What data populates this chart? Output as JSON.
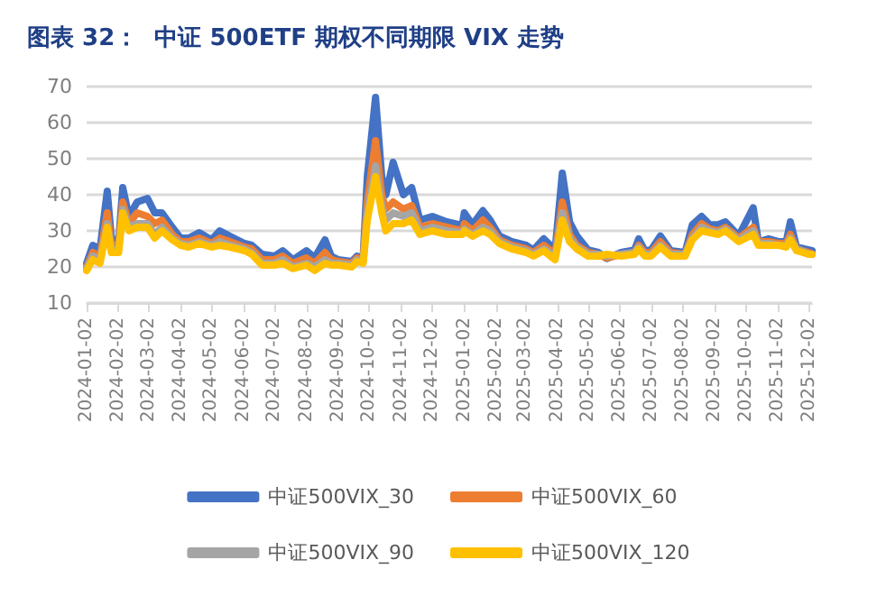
{
  "chart_data": {
    "type": "line",
    "title": "图表 32：  中证 500ETF 期权不同期限 VIX 走势",
    "x": [
      "2024-01-02",
      "2024-01-08",
      "2024-01-15",
      "2024-01-22",
      "2024-01-26",
      "2024-02-02",
      "2024-02-06",
      "2024-02-12",
      "2024-02-20",
      "2024-03-01",
      "2024-03-08",
      "2024-03-15",
      "2024-03-25",
      "2024-04-02",
      "2024-04-10",
      "2024-04-20",
      "2024-05-02",
      "2024-05-10",
      "2024-05-20",
      "2024-06-03",
      "2024-06-10",
      "2024-06-20",
      "2024-07-02",
      "2024-07-10",
      "2024-07-20",
      "2024-08-02",
      "2024-08-10",
      "2024-08-20",
      "2024-08-26",
      "2024-09-02",
      "2024-09-15",
      "2024-09-20",
      "2024-09-26",
      "2024-09-30",
      "2024-10-08",
      "2024-10-14",
      "2024-10-18",
      "2024-10-25",
      "2024-11-04",
      "2024-11-12",
      "2024-11-20",
      "2024-12-02",
      "2024-12-16",
      "2024-12-31",
      "2025-01-02",
      "2025-01-10",
      "2025-01-20",
      "2025-01-27",
      "2025-02-05",
      "2025-02-17",
      "2025-03-03",
      "2025-03-10",
      "2025-03-20",
      "2025-03-31",
      "2025-04-07",
      "2025-04-14",
      "2025-04-21",
      "2025-05-02",
      "2025-05-12",
      "2025-05-20",
      "2025-06-03",
      "2025-06-16",
      "2025-06-20",
      "2025-06-26",
      "2025-07-02",
      "2025-07-11",
      "2025-07-21",
      "2025-08-04",
      "2025-08-11",
      "2025-08-20",
      "2025-08-28",
      "2025-09-05",
      "2025-09-12",
      "2025-09-25",
      "2025-10-09",
      "2025-10-14",
      "2025-10-24",
      "2025-11-03",
      "2025-11-10",
      "2025-11-14",
      "2025-11-20",
      "2025-12-02",
      "2025-12-05"
    ],
    "series": [
      {
        "name": "中证500VIX_30",
        "color": "#4472c4",
        "values": [
          21,
          26,
          25,
          41,
          28,
          27,
          42,
          34,
          38,
          39,
          35,
          35,
          31,
          28,
          28,
          29.5,
          27.5,
          30,
          28.5,
          26.5,
          26,
          23.5,
          23,
          24.5,
          22,
          24.5,
          22.5,
          27.5,
          23,
          22,
          21.5,
          23,
          22.5,
          45,
          67,
          45,
          40,
          49,
          40,
          42,
          33,
          34,
          32.5,
          31.5,
          35,
          31.7,
          35.6,
          33,
          28.6,
          27,
          26,
          24.7,
          27.8,
          24.7,
          46,
          32.5,
          28.6,
          24.7,
          24,
          22.3,
          24,
          24.7,
          27.8,
          24.5,
          24.7,
          28.6,
          24.5,
          24,
          31.7,
          34,
          31.7,
          31.7,
          32.5,
          28.6,
          36.4,
          27,
          27.8,
          27,
          27,
          32.5,
          25.5,
          24.7,
          24.5
        ]
      },
      {
        "name": "中证500VIX_60",
        "color": "#ed7d31",
        "values": [
          20,
          24,
          23,
          35,
          26,
          26,
          38,
          32,
          35,
          34,
          32,
          33,
          29,
          27,
          27,
          28,
          26.5,
          28,
          27,
          25.5,
          25,
          22,
          22,
          23,
          21,
          22.5,
          21,
          24,
          22,
          21.5,
          21,
          22.5,
          22,
          38,
          55,
          40,
          36,
          38,
          36,
          37,
          31,
          32,
          31,
          30,
          32,
          30,
          33,
          31,
          27.5,
          26,
          25,
          24,
          26,
          23.5,
          38,
          29,
          26,
          24,
          23.5,
          22.5,
          23.5,
          24,
          26,
          24,
          24,
          27,
          24,
          23.5,
          29,
          32,
          30.5,
          30,
          31,
          28,
          31,
          27,
          27,
          26.5,
          26.5,
          29,
          25,
          24,
          23.5
        ]
      },
      {
        "name": "中证500VIX_90",
        "color": "#a5a5a5",
        "values": [
          19.5,
          23,
          22,
          32,
          25,
          25,
          36,
          31,
          32,
          32,
          29,
          31,
          28,
          26.5,
          26,
          27,
          26,
          27,
          26,
          25,
          24,
          21,
          21,
          22,
          20,
          21,
          20,
          22,
          21,
          21,
          20.5,
          22,
          21.5,
          35,
          48,
          37,
          33,
          35,
          34,
          35,
          30,
          31,
          30,
          29.5,
          30.5,
          29,
          31,
          30,
          27,
          25.5,
          24.5,
          23.5,
          25,
          23,
          35,
          28,
          25.5,
          23.5,
          23.5,
          23,
          23.5,
          24,
          25.5,
          23.5,
          23.5,
          26,
          23.5,
          23.5,
          28,
          31,
          30,
          29.5,
          30.5,
          27.5,
          30,
          26.5,
          26.5,
          26,
          26,
          28,
          25,
          23.5,
          23.5
        ]
      },
      {
        "name": "中证500VIX_120",
        "color": "#ffc000",
        "values": [
          19,
          22,
          21,
          31,
          24,
          24,
          35,
          30,
          31,
          31,
          28,
          30,
          27.5,
          26,
          25.5,
          26.5,
          25.5,
          26,
          25.5,
          24.5,
          23.5,
          20.5,
          20.5,
          21,
          19.5,
          20.5,
          19,
          21,
          20.5,
          20.5,
          20,
          21.5,
          21,
          33,
          45,
          35,
          30,
          32,
          32,
          33,
          29,
          30,
          29,
          29,
          30,
          28.5,
          30,
          29,
          26.5,
          25,
          24,
          23,
          24.5,
          22,
          33,
          27,
          25,
          23,
          23,
          23.5,
          23,
          23.5,
          25,
          23,
          23,
          25.5,
          23,
          23,
          27.5,
          30,
          29.5,
          29,
          30,
          27,
          29,
          26,
          26,
          26,
          25.5,
          27.5,
          24.5,
          23.5,
          23.5
        ]
      }
    ],
    "xlim": [
      "2024-01-02",
      "2025-12-05"
    ],
    "xticks": [
      "2024-01-02",
      "2024-02-02",
      "2024-03-02",
      "2024-04-02",
      "2024-05-02",
      "2024-06-02",
      "2024-07-02",
      "2024-08-02",
      "2024-09-02",
      "2024-10-02",
      "2024-11-02",
      "2024-12-02",
      "2025-01-02",
      "2025-02-02",
      "2025-03-02",
      "2025-04-02",
      "2025-05-02",
      "2025-06-02",
      "2025-07-02",
      "2025-08-02",
      "2025-09-02",
      "2025-10-02",
      "2025-11-02",
      "2025-12-02"
    ],
    "ylim": [
      10,
      70
    ],
    "yticks": [
      10,
      20,
      30,
      40,
      50,
      60,
      70
    ],
    "grid": "y",
    "legend": "bottom",
    "marker": "none",
    "line_style": "solid"
  }
}
